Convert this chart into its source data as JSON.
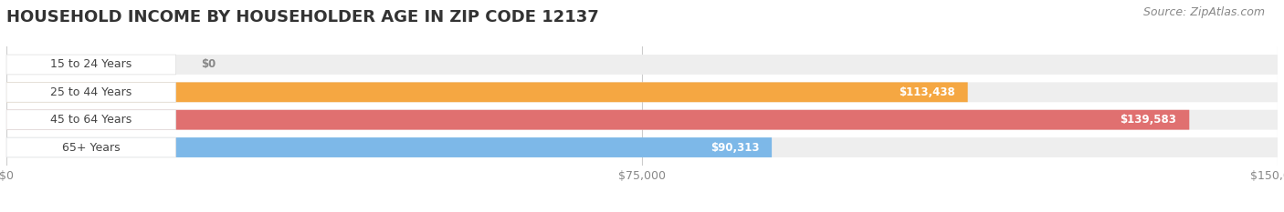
{
  "title": "HOUSEHOLD INCOME BY HOUSEHOLDER AGE IN ZIP CODE 12137",
  "source": "Source: ZipAtlas.com",
  "categories": [
    "15 to 24 Years",
    "25 to 44 Years",
    "45 to 64 Years",
    "65+ Years"
  ],
  "values": [
    0,
    113438,
    139583,
    90313
  ],
  "bar_colors": [
    "#f5a0b0",
    "#f5a742",
    "#e07070",
    "#7db8e8"
  ],
  "bar_bg_color": "#eeeeee",
  "value_labels": [
    "$0",
    "$113,438",
    "$139,583",
    "$90,313"
  ],
  "xlim": [
    0,
    150000
  ],
  "xticks": [
    0,
    75000,
    150000
  ],
  "xticklabels": [
    "$0",
    "$75,000",
    "$150,000"
  ],
  "title_fontsize": 13,
  "source_fontsize": 9,
  "bar_height": 0.72,
  "background_color": "#ffffff",
  "label_box_color": "#ffffff",
  "label_text_color": "#444444",
  "value_text_color": "#ffffff",
  "grid_color": "#cccccc",
  "tick_color": "#888888"
}
